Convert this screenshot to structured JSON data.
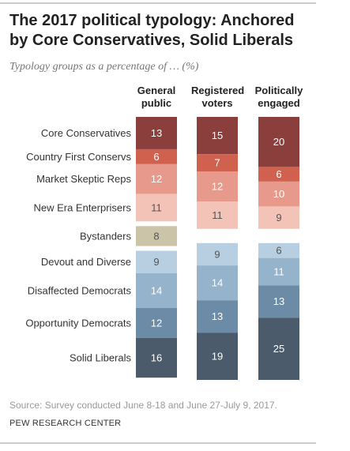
{
  "chart_data": {
    "type": "bar",
    "stacked": true,
    "title": "The 2017 political typology: Anchored by Core Conservatives, Solid Liberals",
    "subtitle": "Typology groups as a percentage of … (%)",
    "categories": [
      "Core Conservatives",
      "Country First Conservs",
      "Market Skeptic Reps",
      "New Era Enterprisers",
      "Bystanders",
      "Devout and Diverse",
      "Disaffected Democrats",
      "Opportunity Democrats",
      "Solid Liberals"
    ],
    "colors": [
      "#8a3f3c",
      "#d0614e",
      "#e79a8b",
      "#f3c3b8",
      "#cbc4a9",
      "#b7cfe0",
      "#95b3cb",
      "#6b8ba6",
      "#4b5b6b"
    ],
    "series": [
      {
        "name": "General public",
        "values": [
          13,
          6,
          12,
          11,
          8,
          9,
          14,
          12,
          16
        ]
      },
      {
        "name": "Registered voters",
        "values": [
          15,
          7,
          12,
          11,
          null,
          9,
          14,
          13,
          19
        ]
      },
      {
        "name": "Politically engaged",
        "values": [
          20,
          6,
          10,
          9,
          null,
          6,
          11,
          13,
          25
        ]
      }
    ],
    "source": "Source: Survey conducted June 8-18 and June 27-July 9, 2017.",
    "credit": "PEW RESEARCH CENTER"
  }
}
